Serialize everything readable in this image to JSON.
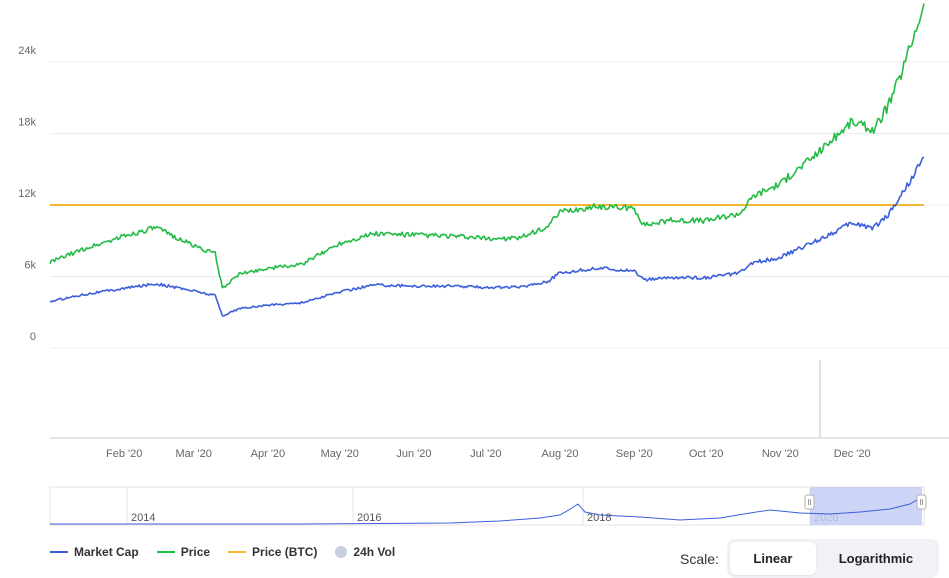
{
  "chart_data": {
    "type": "line",
    "y_ticks": [
      "0",
      "6k",
      "12k",
      "18k",
      "24k"
    ],
    "ylim": [
      0,
      30000
    ],
    "x_ticks": [
      "Feb '20",
      "Mar '20",
      "Apr '20",
      "May '20",
      "Jun '20",
      "Jul '20",
      "Aug '20",
      "Sep '20",
      "Oct '20",
      "Nov '20",
      "Dec '20"
    ],
    "x": [
      "2020-01-01",
      "2020-01-15",
      "2020-02-01",
      "2020-02-14",
      "2020-03-01",
      "2020-03-10",
      "2020-03-13",
      "2020-03-20",
      "2020-04-01",
      "2020-04-15",
      "2020-05-01",
      "2020-05-15",
      "2020-06-01",
      "2020-06-15",
      "2020-07-01",
      "2020-07-15",
      "2020-07-27",
      "2020-08-01",
      "2020-08-17",
      "2020-09-01",
      "2020-09-05",
      "2020-09-15",
      "2020-10-01",
      "2020-10-15",
      "2020-10-21",
      "2020-11-01",
      "2020-11-15",
      "2020-12-01",
      "2020-12-10",
      "2020-12-16",
      "2020-12-22",
      "2020-12-31"
    ],
    "series": [
      {
        "name": "Price",
        "color": "#22bb44",
        "values": [
          7200,
          8300,
          9400,
          10100,
          8600,
          7900,
          5000,
          6200,
          6700,
          7000,
          8800,
          9600,
          9500,
          9400,
          9200,
          9200,
          10200,
          11400,
          11900,
          11700,
          10300,
          10700,
          10700,
          11300,
          12800,
          13800,
          16100,
          19000,
          18300,
          20300,
          23300,
          28900
        ]
      },
      {
        "name": "Market Cap",
        "color": "#3b5fdb",
        "values": [
          3900,
          4500,
          5000,
          5400,
          4800,
          4400,
          2700,
          3300,
          3600,
          3800,
          4700,
          5300,
          5200,
          5200,
          5100,
          5100,
          5600,
          6300,
          6700,
          6500,
          5700,
          5900,
          5900,
          6300,
          7200,
          7600,
          8900,
          10500,
          10100,
          11200,
          13000,
          16000
        ]
      }
    ],
    "reference_line": {
      "name": "Price (BTC)",
      "color": "#f5b82e",
      "value": 12000
    },
    "navigator": {
      "labels": [
        "2014",
        "2016",
        "2018",
        "2020"
      ],
      "selection_start_label": "2020"
    }
  },
  "legend": [
    {
      "label": "Market Cap",
      "color": "#3b5fdb",
      "kind": "line"
    },
    {
      "label": "Price",
      "color": "#22bb44",
      "kind": "line"
    },
    {
      "label": "Price (BTC)",
      "color": "#f5b82e",
      "kind": "line"
    },
    {
      "label": "24h Vol",
      "color": "#c7cfe0",
      "kind": "dot"
    }
  ],
  "scale": {
    "label": "Scale:",
    "linear": "Linear",
    "log": "Logarithmic"
  }
}
